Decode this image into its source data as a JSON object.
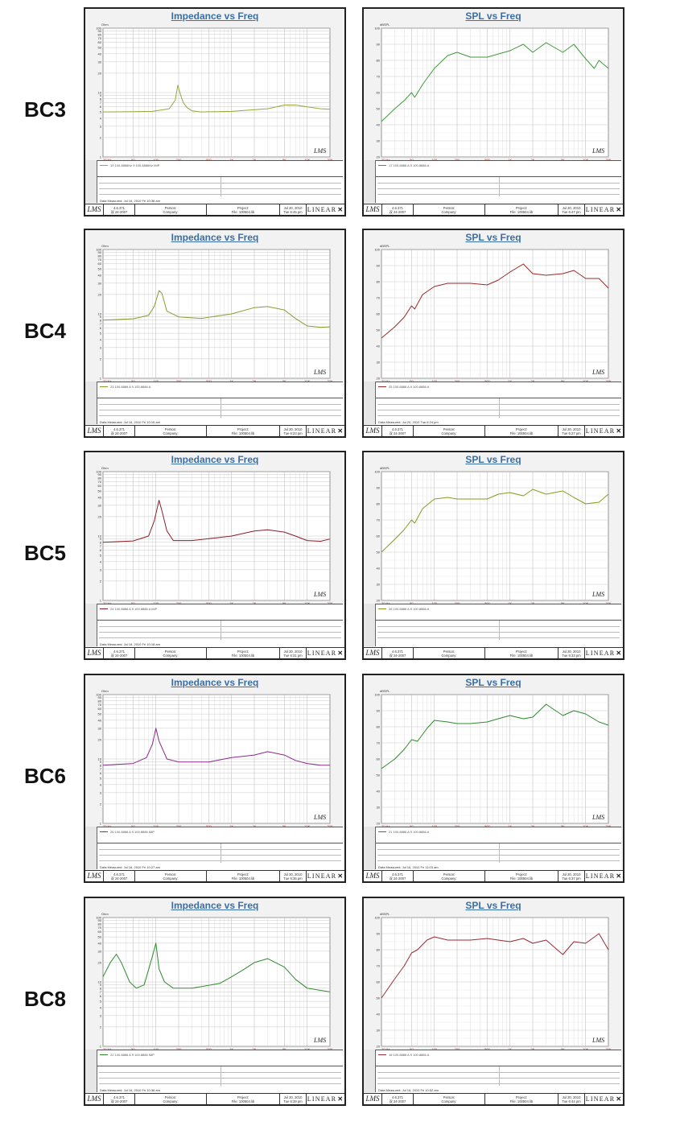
{
  "footer": {
    "lms_logo": "LMS",
    "version": "4.6.371",
    "build_date": "双 24-2007",
    "person_label": "Person:",
    "company_label": "Company:",
    "project_label": "Project:",
    "brand": "LINEAR"
  },
  "rows": [
    {
      "label": "BC3",
      "imp": {
        "title": "Impedance vs Freq",
        "unit": "Ohm",
        "legend": "19  100.8886Hz 9 100.8886Hz  IMP",
        "date_measured": "Data Measured: Jul 16, 2010  Fri 10:38 am",
        "file": "File: 100504.lib",
        "date": "Jul 20, 2010",
        "time": "Tue 6:45 pm",
        "line_color": "#9aa63a"
      },
      "spl": {
        "title": "SPL vs Freq",
        "unit": "dBSPL",
        "legend": "17  100.8886 A 9 100.8886 A",
        "date_measured": "",
        "file": "File: 100504.lib",
        "date": "Jul 20, 2010",
        "time": "Tue 6:47 pm",
        "line_color": "#3f9a3a"
      }
    },
    {
      "label": "BC4",
      "imp": {
        "title": "Impedance vs Freq",
        "unit": "Ohm",
        "legend": "23  100.8886 A 9 100.8886 A",
        "date_measured": "Data Measured: Jul 16, 2010  Fri 10:15 am",
        "file": "File: 100504.lib",
        "date": "Jul 20, 2010",
        "time": "Tue 6:23 pm",
        "line_color": "#8c9a2e"
      },
      "spl": {
        "title": "SPL vs Freq",
        "unit": "dBSPL",
        "legend": "25  100.8886 A 9 100.8886 A",
        "date_measured": "Data Measured: Jul 20, 2010  Tue 6:24 pm",
        "file": "File: 100504.lib",
        "date": "Jul 20, 2010",
        "time": "Tue 6:27 pm",
        "line_color": "#9a2a2a"
      }
    },
    {
      "label": "BC5",
      "imp": {
        "title": "Impedance vs Freq",
        "unit": "Ohm",
        "legend": "24  100.8886 A 9 100.8886 A  IMP",
        "date_measured": "Data Measured: Jul 16, 2010  Fri 10:18 am",
        "file": "File: 100504.lib",
        "date": "Jul 20, 2010",
        "time": "Tue 6:31 pm",
        "line_color": "#8a1f2a"
      },
      "spl": {
        "title": "SPL vs Freq",
        "unit": "dBSPL",
        "legend": "26  100.8886 A 9 100.8886 A",
        "date_measured": "",
        "file": "File: 100504.lib",
        "date": "Jul 20, 2010",
        "time": "Tue 6:33 pm",
        "line_color": "#8a9a1e"
      }
    },
    {
      "label": "BC6",
      "imp": {
        "title": "Impedance vs Freq",
        "unit": "Ohm",
        "legend": "26  100.8886 A 9 100.8886  IMP",
        "date_measured": "Data Measured: Jul 16, 2010  Fri 10:27 am",
        "file": "File: 100504.lib",
        "date": "Jul 20, 2010",
        "time": "Tue 6:36 pm",
        "line_color": "#8a2a8a"
      },
      "spl": {
        "title": "SPL vs Freq",
        "unit": "dBSPL",
        "legend": "21  100.8886 A 9 100.8886 A",
        "date_measured": "Data Measured: Jul 16, 2010  Fri 11:03 am",
        "file": "File: 100504.lib",
        "date": "Jul 20, 2010",
        "time": "Tue 6:37 pm",
        "line_color": "#2e8a2e"
      }
    },
    {
      "label": "BC8",
      "imp": {
        "title": "Impedance vs Freq",
        "unit": "Ohm",
        "legend": "22  100.8886 A 9 100.8886  IMP",
        "date_measured": "Data Measured: Jul 16, 2010  Fri 10:38 am",
        "file": "File: 100504.lib",
        "date": "Jul 20, 2010",
        "time": "Tue 6:39 pm",
        "line_color": "#2e8a2e"
      },
      "spl": {
        "title": "SPL vs Freq",
        "unit": "dBSPL",
        "legend": "18  100.8886 A 9 100.8886 A",
        "date_measured": "Data Measured: Jul 16, 2010  Fri 10:52 am",
        "file": "File: 100504.lib",
        "date": "Jul 20, 2010",
        "time": "Tue 6:44 pm",
        "line_color": "#9a2a35"
      }
    }
  ],
  "chart_data": [
    {
      "type": "line",
      "title": "Impedance vs Freq",
      "ylabel": "Ohm",
      "xlim": [
        20,
        20000
      ],
      "ylim": [
        1,
        100
      ],
      "x_scale": "log",
      "y_scale": "log",
      "x_ticks": [
        "20 Hz",
        "50",
        "100",
        "200",
        "500",
        "1K",
        "2K",
        "5K",
        "10K",
        "20K"
      ],
      "y_ticks": [
        "1",
        "2",
        "3",
        "4",
        "5",
        "6",
        "7",
        "8",
        "9",
        "10",
        "20",
        "30",
        "40",
        "50",
        "60",
        "70",
        "80",
        "90",
        "100"
      ],
      "grid": true,
      "series": [
        {
          "name": "BC3",
          "x": [
            20,
            50,
            90,
            150,
            180,
            195,
            210,
            230,
            260,
            300,
            400,
            1000,
            3000,
            5000,
            7000,
            10000,
            15000,
            20000
          ],
          "y": [
            5,
            5.05,
            5.1,
            5.6,
            7.6,
            13,
            9.5,
            7,
            5.8,
            5.2,
            5,
            5.1,
            5.6,
            6.4,
            6.4,
            6,
            5.6,
            5.5
          ]
        },
        {
          "name": "BC4",
          "x": [
            20,
            50,
            80,
            95,
            110,
            120,
            140,
            200,
            400,
            1000,
            2000,
            3000,
            5000,
            7000,
            10000,
            15000,
            20000
          ],
          "y": [
            8,
            8.4,
            9.5,
            13,
            23,
            21,
            11,
            9,
            8.5,
            10,
            12.5,
            13,
            11.5,
            8.5,
            6.5,
            6.2,
            6.3
          ]
        },
        {
          "name": "BC5",
          "x": [
            20,
            50,
            80,
            95,
            110,
            120,
            140,
            170,
            300,
            1000,
            2000,
            3000,
            5000,
            7000,
            10000,
            15000,
            20000
          ],
          "y": [
            8,
            8.4,
            10,
            17,
            36,
            25,
            12,
            8.5,
            8.5,
            10,
            12,
            12.5,
            11.5,
            10,
            8.5,
            8.3,
            9
          ]
        },
        {
          "name": "BC6",
          "x": [
            20,
            50,
            75,
            90,
            100,
            110,
            140,
            200,
            500,
            1000,
            2000,
            3000,
            5000,
            7000,
            10000,
            15000,
            20000
          ],
          "y": [
            8,
            8.5,
            10.5,
            17,
            30,
            19,
            10,
            9,
            9,
            10.5,
            11.5,
            13,
            11.5,
            9.5,
            8.5,
            8,
            8
          ]
        },
        {
          "name": "BC8",
          "x": [
            20,
            25,
            30,
            35,
            45,
            55,
            70,
            90,
            100,
            110,
            130,
            170,
            300,
            700,
            1000,
            1500,
            2000,
            3000,
            5000,
            7000,
            10000,
            20000
          ],
          "y": [
            12,
            20,
            27,
            20,
            10,
            8,
            9,
            25,
            40,
            16,
            10,
            8,
            8,
            9.5,
            12,
            16,
            20,
            23,
            17,
            11,
            8,
            7
          ]
        }
      ]
    },
    {
      "type": "line",
      "title": "SPL vs Freq",
      "ylabel": "dBSPL",
      "xlim": [
        20,
        20000
      ],
      "ylim": [
        20,
        100
      ],
      "x_scale": "log",
      "x_ticks": [
        "20 Hz",
        "50",
        "100",
        "200",
        "500",
        "1K",
        "2K",
        "5K",
        "10K",
        "20K"
      ],
      "y_ticks": [
        "20",
        "30",
        "40",
        "50",
        "60",
        "70",
        "80",
        "90",
        "100"
      ],
      "grid": true,
      "series": [
        {
          "name": "BC3",
          "x": [
            20,
            30,
            40,
            50,
            55,
            70,
            100,
            150,
            200,
            300,
            500,
            1000,
            1500,
            2000,
            3000,
            5000,
            7000,
            10000,
            13000,
            15000,
            20000
          ],
          "y": [
            42,
            50,
            55,
            60,
            57,
            65,
            75,
            83,
            85,
            82,
            82,
            86,
            90,
            85,
            91,
            85,
            90,
            81,
            75,
            80,
            75
          ]
        },
        {
          "name": "BC4",
          "x": [
            20,
            30,
            40,
            50,
            55,
            70,
            100,
            150,
            200,
            300,
            500,
            700,
            1000,
            1500,
            2000,
            3000,
            5000,
            7000,
            10000,
            15000,
            20000
          ],
          "y": [
            45,
            52,
            58,
            65,
            63,
            72,
            77,
            79,
            79,
            79,
            78,
            81,
            86,
            91,
            85,
            84,
            85,
            87,
            82,
            82,
            76
          ]
        },
        {
          "name": "BC5",
          "x": [
            20,
            30,
            40,
            50,
            55,
            70,
            100,
            150,
            200,
            300,
            500,
            700,
            1000,
            1500,
            2000,
            3000,
            5000,
            7000,
            10000,
            15000,
            20000
          ],
          "y": [
            50,
            58,
            64,
            70,
            68,
            77,
            83,
            84,
            83,
            83,
            83,
            86,
            87,
            85,
            89,
            86,
            88,
            84,
            80,
            81,
            86
          ]
        },
        {
          "name": "BC6",
          "x": [
            20,
            30,
            40,
            50,
            60,
            80,
            100,
            150,
            200,
            300,
            500,
            700,
            1000,
            1500,
            2000,
            3000,
            5000,
            7000,
            10000,
            15000,
            20000
          ],
          "y": [
            54,
            60,
            66,
            72,
            71,
            79,
            84,
            83,
            82,
            82,
            83,
            85,
            87,
            85,
            86,
            94,
            87,
            90,
            88,
            83,
            81
          ]
        },
        {
          "name": "BC8",
          "x": [
            20,
            30,
            40,
            50,
            60,
            80,
            100,
            150,
            200,
            300,
            500,
            700,
            1000,
            1500,
            2000,
            3000,
            5000,
            7000,
            10000,
            15000,
            20000
          ],
          "y": [
            50,
            62,
            70,
            78,
            80,
            86,
            88,
            86,
            86,
            86,
            87,
            86,
            85,
            87,
            84,
            86,
            77,
            85,
            84,
            90,
            80
          ]
        }
      ]
    }
  ]
}
